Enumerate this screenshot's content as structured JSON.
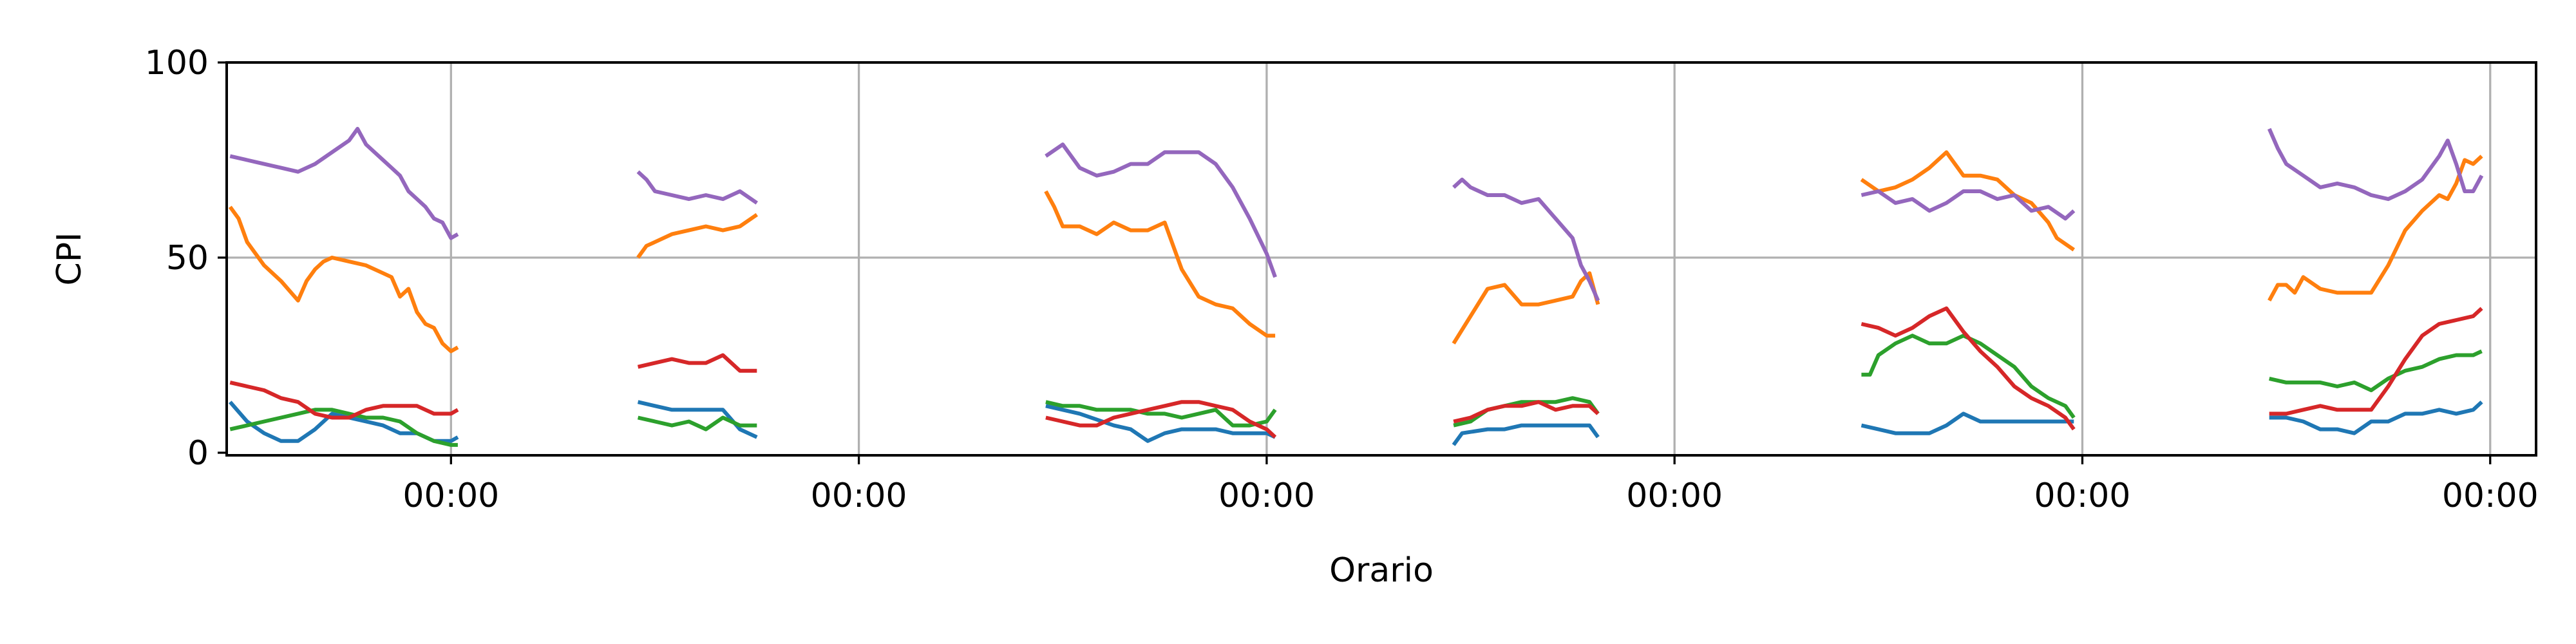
{
  "chart_data": {
    "type": "line",
    "title": "",
    "xlabel": "Orario",
    "ylabel": "CPI",
    "x_unit": "hour",
    "xlim": [
      -13.2,
      122.7
    ],
    "ylim": [
      0,
      100
    ],
    "x_ticks": [
      {
        "value": 0,
        "label": "00:00"
      },
      {
        "value": 24,
        "label": "00:00"
      },
      {
        "value": 48,
        "label": "00:00"
      },
      {
        "value": 72,
        "label": "00:00"
      },
      {
        "value": 96,
        "label": "00:00"
      },
      {
        "value": 120,
        "label": "00:00"
      }
    ],
    "y_ticks": [
      {
        "value": 0,
        "label": "0"
      },
      {
        "value": 50,
        "label": "50"
      },
      {
        "value": 100,
        "label": "100"
      }
    ],
    "grid": true,
    "legend": "none",
    "series": [
      {
        "color": "#1f77b4",
        "segments": [
          {
            "x": [
              -13.0,
              -12.0,
              -11.0,
              -10.0,
              -9.0,
              -8.0,
              -7.0,
              -6.0,
              -5.0,
              -4.0,
              -3.0,
              -2.0,
              -1.0,
              0.0,
              0.4
            ],
            "y": [
              13,
              8,
              5,
              3,
              3,
              6,
              10,
              9,
              8,
              7,
              5,
              5,
              3,
              3,
              4
            ]
          },
          {
            "x": [
              11.0,
              12.0,
              13.0,
              14.0,
              15.0,
              16.0,
              17.0,
              18.0
            ],
            "y": [
              13,
              12,
              11,
              11,
              11,
              11,
              6,
              4
            ]
          },
          {
            "x": [
              35.0,
              37.0,
              39.0,
              40.0,
              41.0,
              42.0,
              43.0,
              44.0,
              45.0,
              46.0,
              47.0,
              48.0,
              48.5
            ],
            "y": [
              12,
              10,
              7,
              6,
              3,
              5,
              6,
              6,
              6,
              5,
              5,
              5,
              4
            ]
          },
          {
            "x": [
              59.0,
              59.5,
              61.0,
              62.0,
              63.0,
              64.0,
              65.0,
              66.0,
              67.0,
              67.5
            ],
            "y": [
              2,
              5,
              6,
              6,
              7,
              7,
              7,
              7,
              7,
              4
            ]
          },
          {
            "x": [
              83.0,
              84.0,
              85.0,
              86.0,
              87.0,
              88.0,
              89.0,
              90.0,
              91.0,
              92.0,
              93.0,
              94.5,
              95.5
            ],
            "y": [
              7,
              6,
              5,
              5,
              5,
              7,
              10,
              8,
              8,
              8,
              8,
              8,
              8
            ]
          },
          {
            "x": [
              107.0,
              108.0,
              109.0,
              110.0,
              111.0,
              112.0,
              113.0,
              114.0,
              115.0,
              116.0,
              117.0,
              118.0,
              119.0,
              119.5
            ],
            "y": [
              9,
              9,
              8,
              6,
              6,
              5,
              8,
              8,
              10,
              10,
              11,
              10,
              11,
              13
            ]
          }
        ]
      },
      {
        "color": "#ff7f0e",
        "segments": [
          {
            "x": [
              -13.0,
              -12.5,
              -12.0,
              -11.0,
              -10.0,
              -9.0,
              -8.5,
              -8.0,
              -7.5,
              -7.0,
              -6.0,
              -5.0,
              -4.0,
              -3.5,
              -3.0,
              -2.5,
              -2.0,
              -1.5,
              -1.0,
              -0.5,
              0.0,
              0.4
            ],
            "y": [
              63,
              60,
              54,
              48,
              44,
              39,
              44,
              47,
              49,
              50,
              49,
              48,
              46,
              45,
              40,
              42,
              36,
              33,
              32,
              28,
              26,
              27
            ]
          },
          {
            "x": [
              11.0,
              11.5,
              12.0,
              13.0,
              14.0,
              15.0,
              16.0,
              17.0,
              18.0
            ],
            "y": [
              50,
              53,
              54,
              56,
              57,
              58,
              57,
              58,
              61
            ]
          },
          {
            "x": [
              35.0,
              35.5,
              36.0,
              37.0,
              38.0,
              39.0,
              40.0,
              41.0,
              42.0,
              43.0,
              44.0,
              45.0,
              46.0,
              47.0,
              48.0,
              48.5
            ],
            "y": [
              67,
              63,
              58,
              58,
              56,
              59,
              57,
              57,
              59,
              47,
              40,
              38,
              37,
              33,
              30,
              30
            ]
          },
          {
            "x": [
              59.0,
              60.0,
              61.0,
              62.0,
              63.0,
              64.0,
              65.0,
              66.0,
              66.5,
              67.0,
              67.5
            ],
            "y": [
              28,
              35,
              42,
              43,
              38,
              38,
              39,
              40,
              44,
              46,
              38
            ]
          },
          {
            "x": [
              83.0,
              84.0,
              85.0,
              86.0,
              87.0,
              88.0,
              89.0,
              90.0,
              91.0,
              92.0,
              93.0,
              94.0,
              94.5,
              95.5
            ],
            "y": [
              70,
              67,
              68,
              70,
              73,
              77,
              71,
              71,
              70,
              66,
              64,
              59,
              55,
              52
            ]
          },
          {
            "x": [
              107.0,
              107.5,
              108.0,
              108.5,
              109.0,
              110.0,
              111.0,
              112.0,
              113.0,
              114.0,
              115.0,
              116.0,
              117.0,
              117.5,
              118.0,
              118.5,
              119.0,
              119.5
            ],
            "y": [
              39,
              43,
              43,
              41,
              45,
              42,
              41,
              41,
              41,
              48,
              57,
              62,
              66,
              65,
              69,
              75,
              74,
              76
            ]
          }
        ]
      },
      {
        "color": "#2ca02c",
        "segments": [
          {
            "x": [
              -13.0,
              -12.0,
              -11.0,
              -10.0,
              -9.0,
              -8.0,
              -7.0,
              -6.0,
              -5.0,
              -4.0,
              -3.0,
              -2.0,
              -1.0,
              0.0,
              0.4
            ],
            "y": [
              6,
              7,
              8,
              9,
              10,
              11,
              11,
              10,
              9,
              9,
              8,
              5,
              3,
              2,
              2
            ]
          },
          {
            "x": [
              11.0,
              12.0,
              13.0,
              14.0,
              15.0,
              16.0,
              17.0,
              18.0
            ],
            "y": [
              9,
              8,
              7,
              8,
              6,
              9,
              7,
              7
            ]
          },
          {
            "x": [
              35.0,
              36.0,
              37.0,
              38.0,
              39.0,
              40.0,
              41.0,
              42.0,
              43.0,
              44.0,
              45.0,
              46.0,
              47.0,
              48.0,
              48.5
            ],
            "y": [
              13,
              12,
              12,
              11,
              11,
              11,
              10,
              10,
              9,
              10,
              11,
              7,
              7,
              8,
              11
            ]
          },
          {
            "x": [
              59.0,
              60.0,
              61.0,
              62.0,
              63.0,
              64.0,
              65.0,
              66.0,
              67.0,
              67.5
            ],
            "y": [
              7,
              8,
              11,
              12,
              13,
              13,
              13,
              14,
              13,
              10
            ]
          },
          {
            "x": [
              83.0,
              83.5,
              84.0,
              85.0,
              86.0,
              87.0,
              88.0,
              89.0,
              90.0,
              91.0,
              92.0,
              93.0,
              94.0,
              95.0,
              95.5
            ],
            "y": [
              20,
              20,
              25,
              28,
              30,
              28,
              28,
              30,
              28,
              25,
              22,
              17,
              14,
              12,
              9
            ]
          },
          {
            "x": [
              107.0,
              108.0,
              109.0,
              110.0,
              111.0,
              112.0,
              113.0,
              114.0,
              115.0,
              116.0,
              117.0,
              118.0,
              119.0,
              119.5
            ],
            "y": [
              19,
              18,
              18,
              18,
              17,
              18,
              16,
              19,
              21,
              22,
              24,
              25,
              25,
              26
            ]
          }
        ]
      },
      {
        "color": "#d62728",
        "segments": [
          {
            "x": [
              -13.0,
              -12.0,
              -11.0,
              -10.0,
              -9.0,
              -8.0,
              -7.0,
              -6.0,
              -5.0,
              -4.0,
              -3.0,
              -2.0,
              -1.0,
              0.0,
              0.4
            ],
            "y": [
              18,
              17,
              16,
              14,
              13,
              10,
              9,
              9,
              11,
              12,
              12,
              12,
              10,
              10,
              11
            ]
          },
          {
            "x": [
              11.0,
              12.0,
              13.0,
              14.0,
              15.0,
              16.0,
              17.0,
              18.0
            ],
            "y": [
              22,
              23,
              24,
              23,
              23,
              25,
              21,
              21
            ]
          },
          {
            "x": [
              35.0,
              36.0,
              37.0,
              38.0,
              39.0,
              40.0,
              41.0,
              42.0,
              43.0,
              44.0,
              45.0,
              46.0,
              47.0,
              48.0,
              48.5
            ],
            "y": [
              9,
              8,
              7,
              7,
              9,
              10,
              11,
              12,
              13,
              13,
              12,
              11,
              8,
              6,
              4
            ]
          },
          {
            "x": [
              59.0,
              60.0,
              61.0,
              62.0,
              63.0,
              64.0,
              65.0,
              66.0,
              67.0,
              67.5
            ],
            "y": [
              8,
              9,
              11,
              12,
              12,
              13,
              11,
              12,
              12,
              10
            ]
          },
          {
            "x": [
              83.0,
              84.0,
              85.0,
              86.0,
              87.0,
              88.0,
              89.0,
              90.0,
              91.0,
              92.0,
              93.0,
              94.0,
              95.0,
              95.5
            ],
            "y": [
              33,
              32,
              30,
              32,
              35,
              37,
              31,
              26,
              22,
              17,
              14,
              12,
              9,
              6
            ]
          },
          {
            "x": [
              107.0,
              108.0,
              109.0,
              110.0,
              111.0,
              112.0,
              113.0,
              114.0,
              115.0,
              116.0,
              117.0,
              118.0,
              119.0,
              119.5
            ],
            "y": [
              10,
              10,
              11,
              12,
              11,
              11,
              11,
              17,
              24,
              30,
              33,
              34,
              35,
              37
            ]
          }
        ]
      },
      {
        "color": "#9467bd",
        "segments": [
          {
            "x": [
              -13.0,
              -12.0,
              -11.0,
              -10.0,
              -9.0,
              -8.0,
              -7.0,
              -6.0,
              -5.5,
              -5.0,
              -4.5,
              -4.0,
              -3.5,
              -3.0,
              -2.5,
              -2.0,
              -1.5,
              -1.0,
              -0.5,
              0.0,
              0.4
            ],
            "y": [
              76,
              75,
              74,
              73,
              72,
              74,
              77,
              80,
              83,
              79,
              77,
              75,
              73,
              71,
              67,
              65,
              63,
              60,
              59,
              55,
              56
            ]
          },
          {
            "x": [
              11.0,
              11.5,
              12.0,
              13.0,
              14.0,
              15.0,
              16.0,
              17.0,
              18.0
            ],
            "y": [
              72,
              70,
              67,
              66,
              65,
              66,
              65,
              67,
              64
            ]
          },
          {
            "x": [
              35.0,
              36.0,
              37.0,
              38.0,
              39.0,
              40.0,
              41.0,
              42.0,
              43.0,
              44.0,
              45.0,
              46.0,
              47.0,
              48.0,
              48.5
            ],
            "y": [
              76,
              79,
              73,
              71,
              72,
              74,
              74,
              77,
              77,
              77,
              74,
              68,
              60,
              51,
              45
            ]
          },
          {
            "x": [
              59.0,
              59.5,
              60.0,
              61.0,
              62.0,
              63.0,
              64.0,
              65.0,
              66.0,
              66.5,
              67.0,
              67.5
            ],
            "y": [
              68,
              70,
              68,
              66,
              66,
              64,
              65,
              60,
              55,
              48,
              44,
              39
            ]
          },
          {
            "x": [
              83.0,
              84.0,
              85.0,
              86.0,
              87.0,
              88.0,
              89.0,
              90.0,
              91.0,
              92.0,
              93.0,
              94.0,
              95.0,
              95.5
            ],
            "y": [
              66,
              67,
              64,
              65,
              62,
              64,
              67,
              67,
              65,
              66,
              62,
              63,
              60,
              62
            ]
          },
          {
            "x": [
              107.0,
              107.5,
              108.0,
              109.0,
              110.0,
              111.0,
              112.0,
              113.0,
              114.0,
              115.0,
              116.0,
              117.0,
              117.5,
              118.0,
              118.5,
              119.0,
              119.5
            ],
            "y": [
              83,
              78,
              74,
              71,
              68,
              69,
              68,
              66,
              65,
              67,
              70,
              76,
              80,
              74,
              67,
              67,
              71
            ]
          }
        ]
      }
    ]
  }
}
